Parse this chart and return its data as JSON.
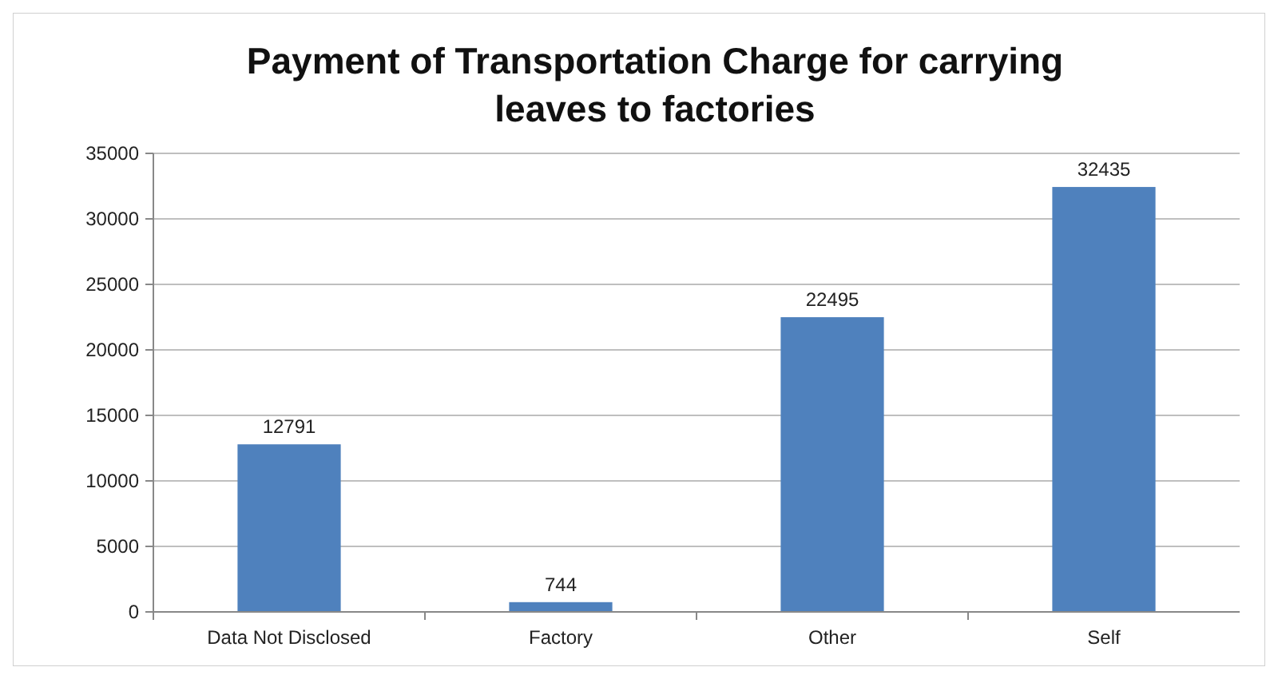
{
  "chart_data": {
    "type": "bar",
    "title": "Payment of Transportation Charge for carrying leaves to factories",
    "categories": [
      "Data Not Disclosed",
      "Factory",
      "Other",
      "Self"
    ],
    "values": [
      12791,
      744,
      22495,
      32435
    ],
    "color": "#4f81bd",
    "ylim": [
      0,
      35000
    ],
    "yticks": [
      0,
      5000,
      10000,
      15000,
      20000,
      25000,
      30000,
      35000
    ],
    "grid": "y",
    "data_labels": true
  }
}
